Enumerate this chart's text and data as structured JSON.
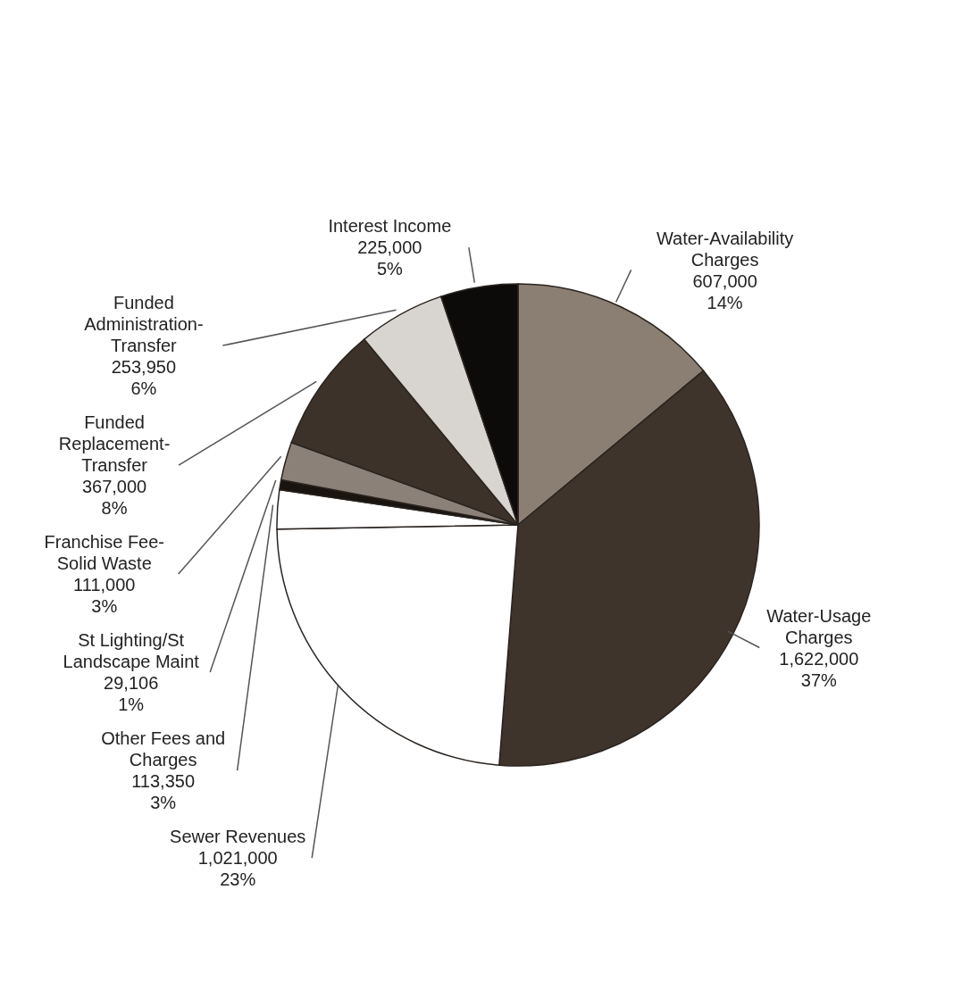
{
  "chart_data": {
    "type": "pie",
    "categories": [
      "Water-Availability Charges",
      "Water-Usage Charges",
      "Sewer Revenues",
      "Other Fees and Charges",
      "St Lighting/St Landscape Maint",
      "Franchise Fee-Solid Waste",
      "Funded Replacement-Transfer",
      "Funded Administration-Transfer",
      "Interest Income"
    ],
    "values": [
      607000,
      1622000,
      1021000,
      113350,
      29106,
      111000,
      367000,
      253950,
      225000
    ],
    "value_labels": [
      "607,000\n14%",
      "1,622,000\n37%",
      "1,021,000\n23%",
      "113,350\n3%",
      "29,106\n1%",
      "111,000\n3%",
      "367,000\n8%",
      "253,950\n6%",
      "225,000\n5%"
    ],
    "colors": [
      "#8a7f72",
      "#3f342c",
      "#ffffff",
      "#ffffff",
      "#1a1410",
      "#8b8178",
      "#3d3229",
      "#d8d4cf",
      "#0d0b0a"
    ],
    "legend": false
  }
}
